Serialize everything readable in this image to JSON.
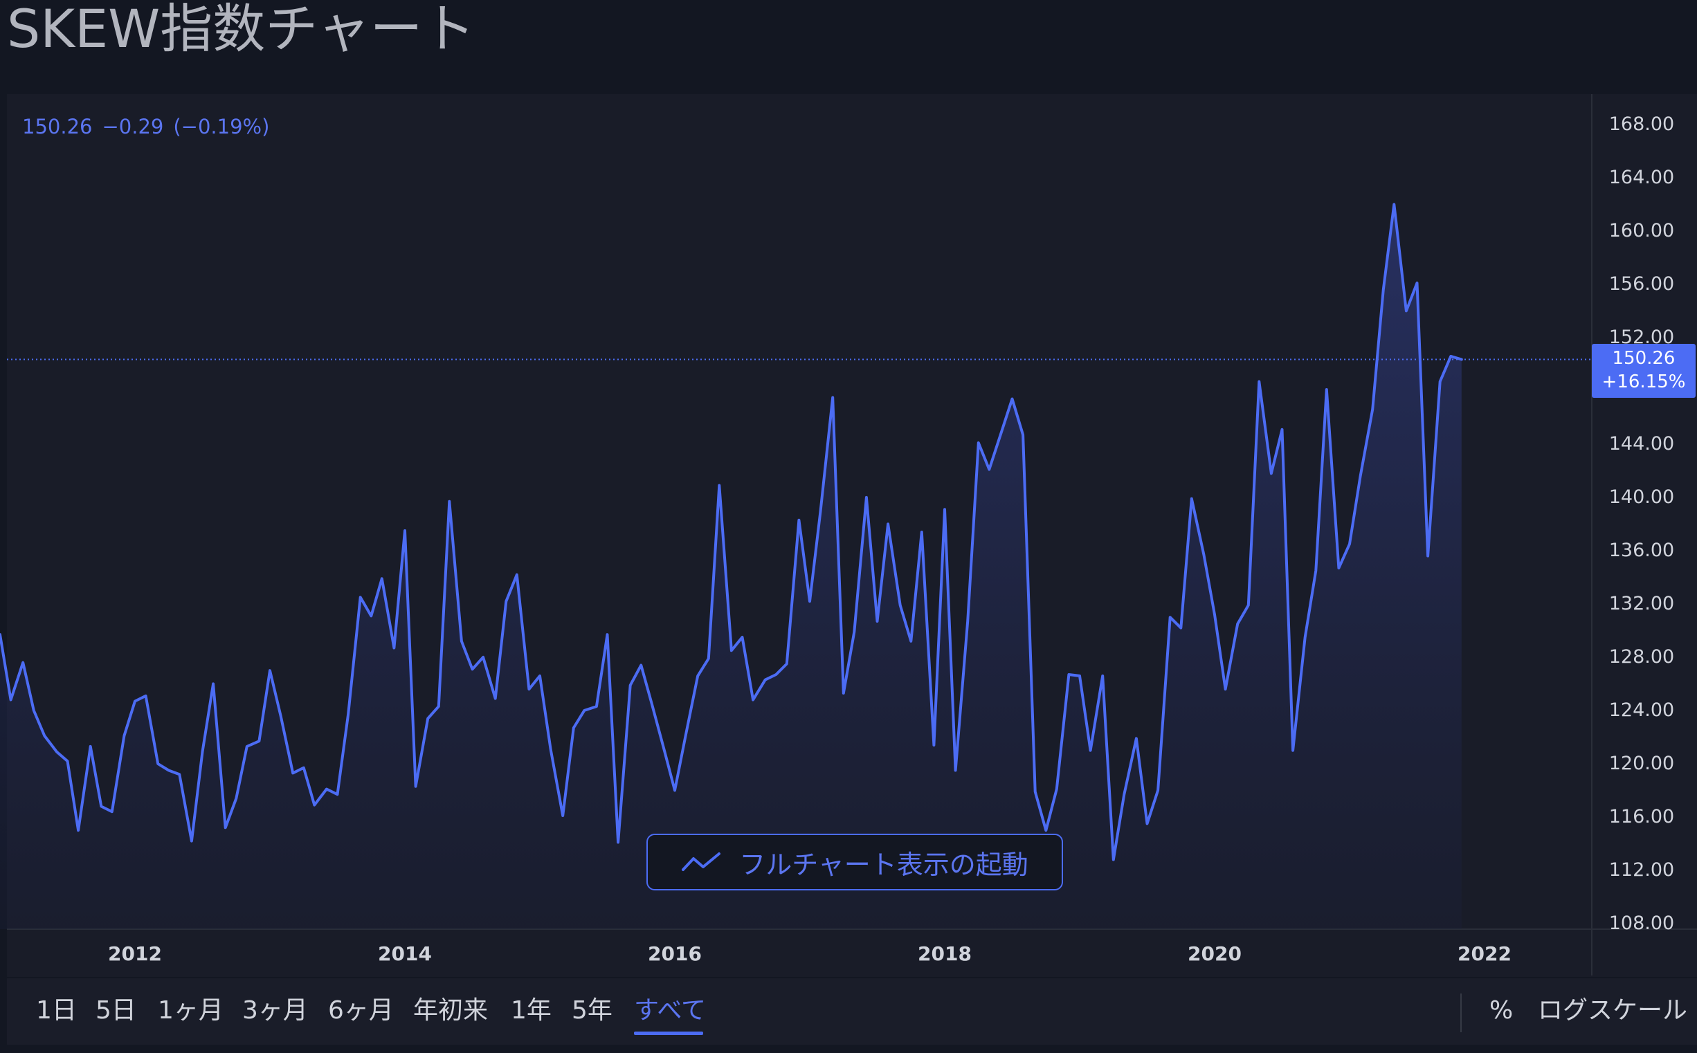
{
  "page": {
    "title": "SKEW指数チャート"
  },
  "legend": {
    "last": "150.26",
    "change": "−0.29",
    "change_pct": "(−0.19%)"
  },
  "price_badge": {
    "price": "150.26",
    "pct": "+16.15%"
  },
  "launch_button": {
    "label": "フルチャート表示の起動",
    "icon": "line-chart-icon"
  },
  "range_buttons": [
    {
      "label": "1日",
      "active": false
    },
    {
      "label": "5日",
      "active": false
    },
    {
      "label": "1ヶ月",
      "active": false
    },
    {
      "label": "3ヶ月",
      "active": false
    },
    {
      "label": "6ヶ月",
      "active": false
    },
    {
      "label": "年初来",
      "active": false
    },
    {
      "label": "1年",
      "active": false
    },
    {
      "label": "5年",
      "active": false
    },
    {
      "label": "すべて",
      "active": true
    }
  ],
  "toolbar": {
    "percent_label": "%",
    "log_scale_label": "ログスケール"
  },
  "colors": {
    "background": "#131722",
    "plot_background": "#191c28",
    "line": "#4c6cf4",
    "accent": "#5b75f0",
    "axis_text": "#d1d4dc",
    "grid_separator": "#2a2e39"
  },
  "chart_data": {
    "type": "area",
    "title": "",
    "xlabel": "",
    "ylabel": "",
    "ylim": [
      108,
      170
    ],
    "xlim": [
      2011.0,
      2023.0
    ],
    "grid": false,
    "y_ticks": [
      "168.00",
      "164.00",
      "160.00",
      "156.00",
      "152.00",
      "144.00",
      "140.00",
      "136.00",
      "132.00",
      "128.00",
      "124.00",
      "120.00",
      "116.00",
      "112.00",
      "108.00"
    ],
    "x_ticks": [
      {
        "label": "2012",
        "x": 2012
      },
      {
        "label": "2014",
        "x": 2014
      },
      {
        "label": "2016",
        "x": 2016
      },
      {
        "label": "2018",
        "x": 2018
      },
      {
        "label": "2020",
        "x": 2020
      },
      {
        "label": "2022",
        "x": 2022
      }
    ],
    "last_price_line": 150.26,
    "series": [
      {
        "values": [
          [
            2011.0,
            129.6
          ],
          [
            2011.08,
            124.7
          ],
          [
            2011.17,
            127.5
          ],
          [
            2011.25,
            123.9
          ],
          [
            2011.33,
            122.0
          ],
          [
            2011.42,
            120.8
          ],
          [
            2011.5,
            120.1
          ],
          [
            2011.58,
            114.9
          ],
          [
            2011.67,
            121.2
          ],
          [
            2011.75,
            116.7
          ],
          [
            2011.83,
            116.3
          ],
          [
            2011.92,
            122.0
          ],
          [
            2012.0,
            124.6
          ],
          [
            2012.08,
            125.0
          ],
          [
            2012.17,
            119.9
          ],
          [
            2012.25,
            119.4
          ],
          [
            2012.33,
            119.1
          ],
          [
            2012.42,
            114.1
          ],
          [
            2012.5,
            120.8
          ],
          [
            2012.58,
            125.9
          ],
          [
            2012.67,
            115.1
          ],
          [
            2012.75,
            117.3
          ],
          [
            2012.83,
            121.2
          ],
          [
            2012.92,
            121.6
          ],
          [
            2013.0,
            126.9
          ],
          [
            2013.08,
            123.5
          ],
          [
            2013.17,
            119.2
          ],
          [
            2013.25,
            119.6
          ],
          [
            2013.33,
            116.8
          ],
          [
            2013.42,
            118.0
          ],
          [
            2013.5,
            117.6
          ],
          [
            2013.58,
            123.6
          ],
          [
            2013.67,
            132.4
          ],
          [
            2013.75,
            131.0
          ],
          [
            2013.83,
            133.8
          ],
          [
            2013.92,
            128.6
          ],
          [
            2014.0,
            137.4
          ],
          [
            2014.08,
            118.2
          ],
          [
            2014.17,
            123.3
          ],
          [
            2014.25,
            124.2
          ],
          [
            2014.33,
            139.6
          ],
          [
            2014.42,
            129.1
          ],
          [
            2014.5,
            127.0
          ],
          [
            2014.58,
            127.9
          ],
          [
            2014.67,
            124.8
          ],
          [
            2014.75,
            132.1
          ],
          [
            2014.83,
            134.1
          ],
          [
            2014.92,
            125.5
          ],
          [
            2015.0,
            126.5
          ],
          [
            2015.08,
            121.0
          ],
          [
            2015.17,
            116.0
          ],
          [
            2015.25,
            122.6
          ],
          [
            2015.33,
            123.9
          ],
          [
            2015.42,
            124.2
          ],
          [
            2015.5,
            129.6
          ],
          [
            2015.58,
            114.0
          ],
          [
            2015.67,
            125.8
          ],
          [
            2015.75,
            127.3
          ],
          [
            2015.83,
            124.4
          ],
          [
            2015.92,
            121.0
          ],
          [
            2016.0,
            117.9
          ],
          [
            2016.08,
            122.0
          ],
          [
            2016.17,
            126.5
          ],
          [
            2016.25,
            127.8
          ],
          [
            2016.33,
            140.8
          ],
          [
            2016.42,
            128.4
          ],
          [
            2016.5,
            129.4
          ],
          [
            2016.58,
            124.7
          ],
          [
            2016.67,
            126.2
          ],
          [
            2016.75,
            126.6
          ],
          [
            2016.83,
            127.4
          ],
          [
            2016.92,
            138.2
          ],
          [
            2017.0,
            132.1
          ],
          [
            2017.08,
            138.9
          ],
          [
            2017.17,
            147.4
          ],
          [
            2017.25,
            125.2
          ],
          [
            2017.33,
            129.8
          ],
          [
            2017.42,
            139.9
          ],
          [
            2017.5,
            130.6
          ],
          [
            2017.58,
            137.9
          ],
          [
            2017.67,
            131.8
          ],
          [
            2017.75,
            129.1
          ],
          [
            2017.83,
            137.3
          ],
          [
            2017.92,
            121.3
          ],
          [
            2018.0,
            139.0
          ],
          [
            2018.08,
            119.4
          ],
          [
            2018.17,
            130.6
          ],
          [
            2018.25,
            144.0
          ],
          [
            2018.33,
            142.0
          ],
          [
            2018.42,
            144.8
          ],
          [
            2018.5,
            147.3
          ],
          [
            2018.58,
            144.6
          ],
          [
            2018.67,
            117.8
          ],
          [
            2018.75,
            114.9
          ],
          [
            2018.83,
            118.0
          ],
          [
            2018.92,
            126.6
          ],
          [
            2019.0,
            126.5
          ],
          [
            2019.08,
            120.9
          ],
          [
            2019.17,
            126.5
          ],
          [
            2019.25,
            112.7
          ],
          [
            2019.33,
            117.6
          ],
          [
            2019.42,
            121.8
          ],
          [
            2019.5,
            115.4
          ],
          [
            2019.58,
            117.9
          ],
          [
            2019.67,
            130.9
          ],
          [
            2019.75,
            130.1
          ],
          [
            2019.83,
            139.8
          ],
          [
            2019.92,
            135.6
          ],
          [
            2020.0,
            131.1
          ],
          [
            2020.08,
            125.5
          ],
          [
            2020.17,
            130.4
          ],
          [
            2020.25,
            131.8
          ],
          [
            2020.33,
            148.6
          ],
          [
            2020.42,
            141.7
          ],
          [
            2020.5,
            145.0
          ],
          [
            2020.58,
            120.9
          ],
          [
            2020.67,
            129.4
          ],
          [
            2020.75,
            134.4
          ],
          [
            2020.83,
            148.0
          ],
          [
            2020.92,
            134.6
          ],
          [
            2021.0,
            136.4
          ],
          [
            2021.08,
            141.5
          ],
          [
            2021.17,
            146.5
          ],
          [
            2021.25,
            155.5
          ],
          [
            2021.33,
            161.9
          ],
          [
            2021.42,
            153.9
          ],
          [
            2021.5,
            156.0
          ],
          [
            2021.58,
            135.5
          ],
          [
            2021.67,
            148.6
          ],
          [
            2021.75,
            150.5
          ],
          [
            2021.83,
            150.26
          ]
        ]
      }
    ]
  }
}
